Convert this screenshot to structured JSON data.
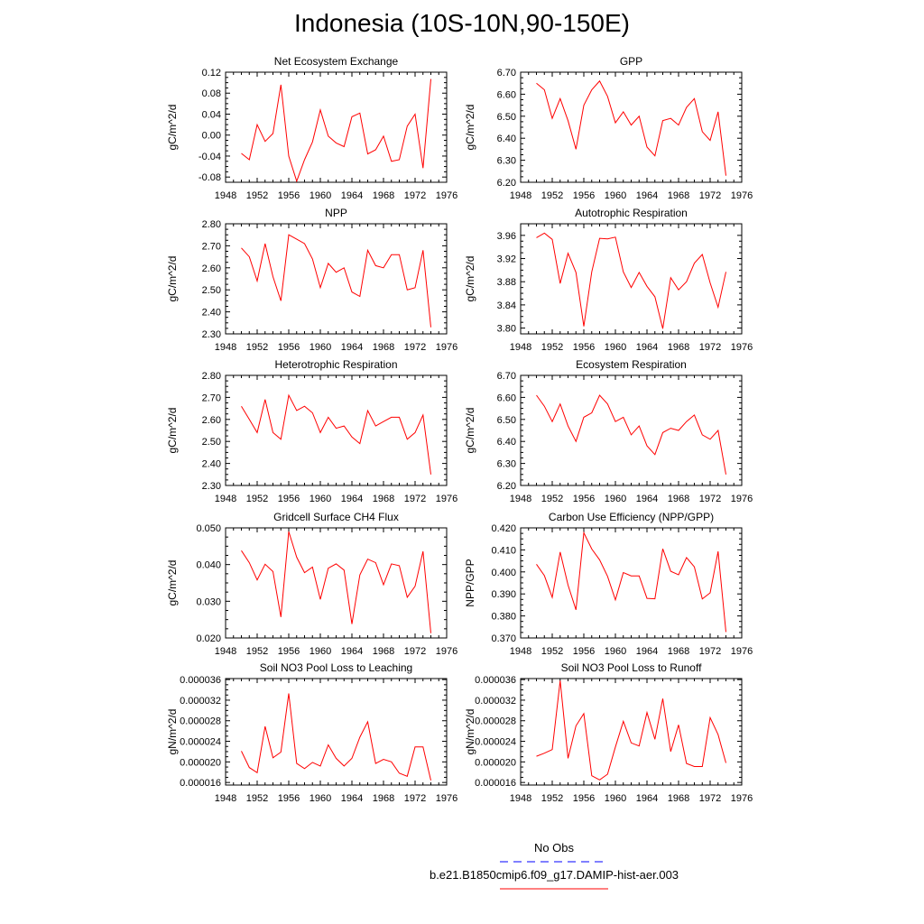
{
  "title": "Indonesia (10S-10N,90-150E)",
  "legend": {
    "obs_label": "No Obs",
    "model_label": "b.e21.B1850cmip6.f09_g17.DAMIP-hist-aer.003",
    "obs_color": "#0000ff",
    "model_color": "#ff0000"
  },
  "chart_data": [
    {
      "type": "line",
      "title": "Net Ecosystem Exchange",
      "ylabel": "gC/m^2/d",
      "xlim": [
        1948,
        1976
      ],
      "ylim": [
        -0.09,
        0.12
      ],
      "xticks": [
        "1948",
        "1952",
        "1956",
        "1960",
        "1964",
        "1968",
        "1972",
        "1976"
      ],
      "yticks": [
        "-0.08",
        "-0.04",
        "0.00",
        "0.04",
        "0.08",
        "0.12"
      ],
      "x": [
        1950,
        1951,
        1952,
        1953,
        1954,
        1955,
        1956,
        1957,
        1958,
        1959,
        1960,
        1961,
        1962,
        1963,
        1964,
        1965,
        1966,
        1967,
        1968,
        1969,
        1970,
        1971,
        1972,
        1973,
        1974
      ],
      "series": [
        {
          "values": [
            -0.035,
            -0.047,
            0.02,
            -0.012,
            0.003,
            0.096,
            -0.04,
            -0.088,
            -0.047,
            -0.013,
            0.048,
            -0.002,
            -0.015,
            -0.022,
            0.035,
            0.042,
            -0.036,
            -0.028,
            -0.002,
            -0.05,
            -0.047,
            0.017,
            0.04,
            -0.063,
            0.107
          ]
        }
      ]
    },
    {
      "type": "line",
      "title": "GPP",
      "ylabel": "gC/m^2/d",
      "xlim": [
        1948,
        1976
      ],
      "ylim": [
        6.2,
        6.7
      ],
      "xticks": [
        "1948",
        "1952",
        "1956",
        "1960",
        "1964",
        "1968",
        "1972",
        "1976"
      ],
      "yticks": [
        "6.20",
        "6.30",
        "6.40",
        "6.50",
        "6.60",
        "6.70"
      ],
      "x": [
        1950,
        1951,
        1952,
        1953,
        1954,
        1955,
        1956,
        1957,
        1958,
        1959,
        1960,
        1961,
        1962,
        1963,
        1964,
        1965,
        1966,
        1967,
        1968,
        1969,
        1970,
        1971,
        1972,
        1973,
        1974
      ],
      "series": [
        {
          "values": [
            6.65,
            6.62,
            6.49,
            6.58,
            6.48,
            6.35,
            6.55,
            6.62,
            6.66,
            6.59,
            6.47,
            6.52,
            6.46,
            6.5,
            6.36,
            6.32,
            6.48,
            6.49,
            6.46,
            6.54,
            6.58,
            6.43,
            6.39,
            6.52,
            6.23
          ]
        }
      ]
    },
    {
      "type": "line",
      "title": "NPP",
      "ylabel": "gC/m^2/d",
      "xlim": [
        1948,
        1976
      ],
      "ylim": [
        2.3,
        2.8
      ],
      "xticks": [
        "1948",
        "1952",
        "1956",
        "1960",
        "1964",
        "1968",
        "1972",
        "1976"
      ],
      "yticks": [
        "2.30",
        "2.40",
        "2.50",
        "2.60",
        "2.70",
        "2.80"
      ],
      "x": [
        1950,
        1951,
        1952,
        1953,
        1954,
        1955,
        1956,
        1957,
        1958,
        1959,
        1960,
        1961,
        1962,
        1963,
        1964,
        1965,
        1966,
        1967,
        1968,
        1969,
        1970,
        1971,
        1972,
        1973,
        1974
      ],
      "series": [
        {
          "values": [
            2.69,
            2.65,
            2.54,
            2.71,
            2.56,
            2.45,
            2.75,
            2.73,
            2.71,
            2.64,
            2.51,
            2.62,
            2.58,
            2.6,
            2.49,
            2.47,
            2.68,
            2.61,
            2.6,
            2.66,
            2.66,
            2.5,
            2.51,
            2.68,
            2.33
          ]
        }
      ]
    },
    {
      "type": "line",
      "title": "Autotrophic Respiration",
      "ylabel": "gC/m^2/d",
      "xlim": [
        1948,
        1976
      ],
      "ylim": [
        3.79,
        3.98
      ],
      "xticks": [
        "1948",
        "1952",
        "1956",
        "1960",
        "1964",
        "1968",
        "1972",
        "1976"
      ],
      "yticks": [
        "3.80",
        "3.84",
        "3.88",
        "3.92",
        "3.96"
      ],
      "x": [
        1950,
        1951,
        1952,
        1953,
        1954,
        1955,
        1956,
        1957,
        1958,
        1959,
        1960,
        1961,
        1962,
        1963,
        1964,
        1965,
        1966,
        1967,
        1968,
        1969,
        1970,
        1971,
        1972,
        1973,
        1974
      ],
      "series": [
        {
          "values": [
            3.956,
            3.964,
            3.953,
            3.877,
            3.929,
            3.896,
            3.803,
            3.897,
            3.955,
            3.954,
            3.957,
            3.897,
            3.87,
            3.896,
            3.872,
            3.854,
            3.799,
            3.887,
            3.866,
            3.88,
            3.912,
            3.927,
            3.878,
            3.836,
            3.897
          ]
        }
      ]
    },
    {
      "type": "line",
      "title": "Heterotrophic Respiration",
      "ylabel": "gC/m^2/d",
      "xlim": [
        1948,
        1976
      ],
      "ylim": [
        2.3,
        2.8
      ],
      "xticks": [
        "1948",
        "1952",
        "1956",
        "1960",
        "1964",
        "1968",
        "1972",
        "1976"
      ],
      "yticks": [
        "2.30",
        "2.40",
        "2.50",
        "2.60",
        "2.70",
        "2.80"
      ],
      "x": [
        1950,
        1951,
        1952,
        1953,
        1954,
        1955,
        1956,
        1957,
        1958,
        1959,
        1960,
        1961,
        1962,
        1963,
        1964,
        1965,
        1966,
        1967,
        1968,
        1969,
        1970,
        1971,
        1972,
        1973,
        1974
      ],
      "series": [
        {
          "values": [
            2.66,
            2.6,
            2.54,
            2.69,
            2.54,
            2.51,
            2.71,
            2.64,
            2.66,
            2.63,
            2.54,
            2.61,
            2.56,
            2.57,
            2.52,
            2.49,
            2.64,
            2.57,
            2.59,
            2.61,
            2.61,
            2.51,
            2.54,
            2.62,
            2.35
          ]
        }
      ]
    },
    {
      "type": "line",
      "title": "Ecosystem Respiration",
      "ylabel": "gC/m^2/d",
      "xlim": [
        1948,
        1976
      ],
      "ylim": [
        6.2,
        6.7
      ],
      "xticks": [
        "1948",
        "1952",
        "1956",
        "1960",
        "1964",
        "1968",
        "1972",
        "1976"
      ],
      "yticks": [
        "6.20",
        "6.30",
        "6.40",
        "6.50",
        "6.60",
        "6.70"
      ],
      "x": [
        1950,
        1951,
        1952,
        1953,
        1954,
        1955,
        1956,
        1957,
        1958,
        1959,
        1960,
        1961,
        1962,
        1963,
        1964,
        1965,
        1966,
        1967,
        1968,
        1969,
        1970,
        1971,
        1972,
        1973,
        1974
      ],
      "series": [
        {
          "values": [
            6.61,
            6.56,
            6.49,
            6.57,
            6.47,
            6.4,
            6.51,
            6.53,
            6.61,
            6.57,
            6.49,
            6.51,
            6.43,
            6.47,
            6.38,
            6.34,
            6.44,
            6.46,
            6.45,
            6.49,
            6.52,
            6.43,
            6.41,
            6.45,
            6.25
          ]
        }
      ]
    },
    {
      "type": "line",
      "title": "Gridcell Surface CH4 Flux",
      "ylabel": "gC/m^2/d",
      "xlim": [
        1948,
        1976
      ],
      "ylim": [
        0.02,
        0.05
      ],
      "xticks": [
        "1948",
        "1952",
        "1956",
        "1960",
        "1964",
        "1968",
        "1972",
        "1976"
      ],
      "yticks": [
        "0.020",
        "0.030",
        "0.040",
        "0.050"
      ],
      "x": [
        1950,
        1951,
        1952,
        1953,
        1954,
        1955,
        1956,
        1957,
        1958,
        1959,
        1960,
        1961,
        1962,
        1963,
        1964,
        1965,
        1966,
        1967,
        1968,
        1969,
        1970,
        1971,
        1972,
        1973,
        1974
      ],
      "series": [
        {
          "values": [
            0.0438,
            0.0405,
            0.0358,
            0.0401,
            0.0381,
            0.0257,
            0.049,
            0.042,
            0.0378,
            0.0393,
            0.0305,
            0.039,
            0.0402,
            0.0385,
            0.0238,
            0.0372,
            0.0415,
            0.0405,
            0.0345,
            0.0402,
            0.0397,
            0.0311,
            0.0341,
            0.0436,
            0.0213
          ]
        }
      ]
    },
    {
      "type": "line",
      "title": "Carbon Use Efficiency (NPP/GPP)",
      "ylabel": "NPP/GPP",
      "xlim": [
        1948,
        1976
      ],
      "ylim": [
        0.37,
        0.42
      ],
      "xticks": [
        "1948",
        "1952",
        "1956",
        "1960",
        "1964",
        "1968",
        "1972",
        "1976"
      ],
      "yticks": [
        "0.370",
        "0.380",
        "0.390",
        "0.400",
        "0.410",
        "0.420"
      ],
      "x": [
        1950,
        1951,
        1952,
        1953,
        1954,
        1955,
        1956,
        1957,
        1958,
        1959,
        1960,
        1961,
        1962,
        1963,
        1964,
        1965,
        1966,
        1967,
        1968,
        1969,
        1970,
        1971,
        1972,
        1973,
        1974
      ],
      "series": [
        {
          "values": [
            0.4035,
            0.3983,
            0.3884,
            0.409,
            0.394,
            0.3828,
            0.4178,
            0.4104,
            0.4055,
            0.398,
            0.3873,
            0.3997,
            0.3982,
            0.3982,
            0.388,
            0.3878,
            0.4105,
            0.4003,
            0.3987,
            0.4065,
            0.4023,
            0.3877,
            0.3905,
            0.4093,
            0.3727
          ]
        }
      ]
    },
    {
      "type": "line",
      "title": "Soil NO3 Pool Loss to Leaching",
      "ylabel": "gN/m^2/d",
      "xlim": [
        1948,
        1976
      ],
      "ylim": [
        1.55e-05,
        3.62e-05
      ],
      "xticks": [
        "1948",
        "1952",
        "1956",
        "1960",
        "1964",
        "1968",
        "1972",
        "1976"
      ],
      "yticks": [
        "0.000016",
        "0.000020",
        "0.000024",
        "0.000028",
        "0.000032",
        "0.000036"
      ],
      "x": [
        1950,
        1951,
        1952,
        1953,
        1954,
        1955,
        1956,
        1957,
        1958,
        1959,
        1960,
        1961,
        1962,
        1963,
        1964,
        1965,
        1966,
        1967,
        1968,
        1969,
        1970,
        1971,
        1972,
        1973,
        1974
      ],
      "series": [
        {
          "values": [
            2.21e-05,
            1.89e-05,
            1.79e-05,
            2.69e-05,
            2.08e-05,
            2.19e-05,
            3.33e-05,
            1.97e-05,
            1.87e-05,
            1.99e-05,
            1.92e-05,
            2.33e-05,
            2.07e-05,
            1.92e-05,
            2.07e-05,
            2.48e-05,
            2.78e-05,
            1.97e-05,
            2.05e-05,
            2e-05,
            1.78e-05,
            1.72e-05,
            2.29e-05,
            2.29e-05,
            1.64e-05
          ]
        }
      ]
    },
    {
      "type": "line",
      "title": "Soil NO3 Pool Loss to Runoff",
      "ylabel": "gN/m^2/d",
      "xlim": [
        1948,
        1976
      ],
      "ylim": [
        1.55e-05,
        3.62e-05
      ],
      "xticks": [
        "1948",
        "1952",
        "1956",
        "1960",
        "1964",
        "1968",
        "1972",
        "1976"
      ],
      "yticks": [
        "0.000016",
        "0.000020",
        "0.000024",
        "0.000028",
        "0.000032",
        "0.000036"
      ],
      "x": [
        1950,
        1951,
        1952,
        1953,
        1954,
        1955,
        1956,
        1957,
        1958,
        1959,
        1960,
        1961,
        1962,
        1963,
        1964,
        1965,
        1966,
        1967,
        1968,
        1969,
        1970,
        1971,
        1972,
        1973,
        1974
      ],
      "series": [
        {
          "values": [
            2.11e-05,
            2.17e-05,
            2.24e-05,
            3.58e-05,
            2.07e-05,
            2.7e-05,
            2.94e-05,
            1.73e-05,
            1.65e-05,
            1.76e-05,
            2.29e-05,
            2.79e-05,
            2.37e-05,
            2.31e-05,
            2.96e-05,
            2.44e-05,
            3.23e-05,
            2.2e-05,
            2.72e-05,
            1.97e-05,
            1.91e-05,
            1.91e-05,
            2.86e-05,
            2.53e-05,
            1.98e-05
          ]
        }
      ]
    }
  ]
}
